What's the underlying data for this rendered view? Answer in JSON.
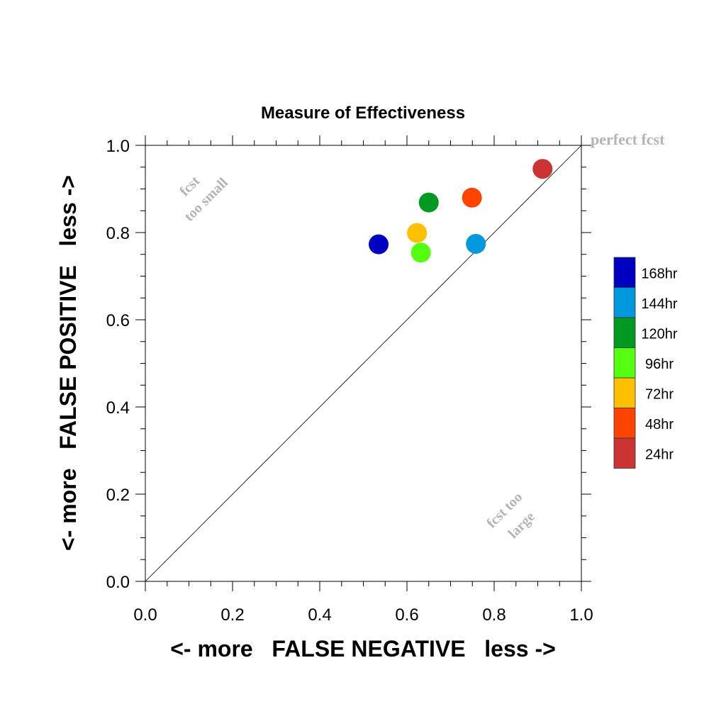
{
  "chart_data": {
    "type": "scatter",
    "title": "Measure of Effectiveness",
    "xlabel": "<- more   FALSE NEGATIVE   less ->",
    "ylabel": "<- more   FALSE POSITIVE   less ->",
    "xlim": [
      0.0,
      1.0
    ],
    "ylim": [
      0.0,
      1.0
    ],
    "xticks": [
      "0.0",
      "0.2",
      "0.4",
      "0.6",
      "0.8",
      "1.0"
    ],
    "yticks": [
      "0.0",
      "0.2",
      "0.4",
      "0.6",
      "0.8",
      "1.0"
    ],
    "grid": false,
    "legend_position": "right",
    "reference_line": {
      "x": [
        0.0,
        1.0
      ],
      "y": [
        0.0,
        1.0
      ]
    },
    "annotations": {
      "perfect": "perfect fcst",
      "too_small_1": "fcst",
      "too_small_2": "too small",
      "too_large_1": "fcst too",
      "too_large_2": "large"
    },
    "series": [
      {
        "name": "168hr",
        "color": "#0000c0",
        "x": [
          0.535
        ],
        "y": [
          0.773
        ]
      },
      {
        "name": "144hr",
        "color": "#0099dd",
        "x": [
          0.758
        ],
        "y": [
          0.774
        ]
      },
      {
        "name": "120hr",
        "color": "#009922",
        "x": [
          0.65
        ],
        "y": [
          0.869
        ]
      },
      {
        "name": "96hr",
        "color": "#55ff11",
        "x": [
          0.632
        ],
        "y": [
          0.754
        ]
      },
      {
        "name": "72hr",
        "color": "#ffc000",
        "x": [
          0.623
        ],
        "y": [
          0.799
        ]
      },
      {
        "name": "48hr",
        "color": "#ff4400",
        "x": [
          0.749
        ],
        "y": [
          0.88
        ]
      },
      {
        "name": "24hr",
        "color": "#cc3333",
        "x": [
          0.911
        ],
        "y": [
          0.946
        ]
      }
    ]
  }
}
